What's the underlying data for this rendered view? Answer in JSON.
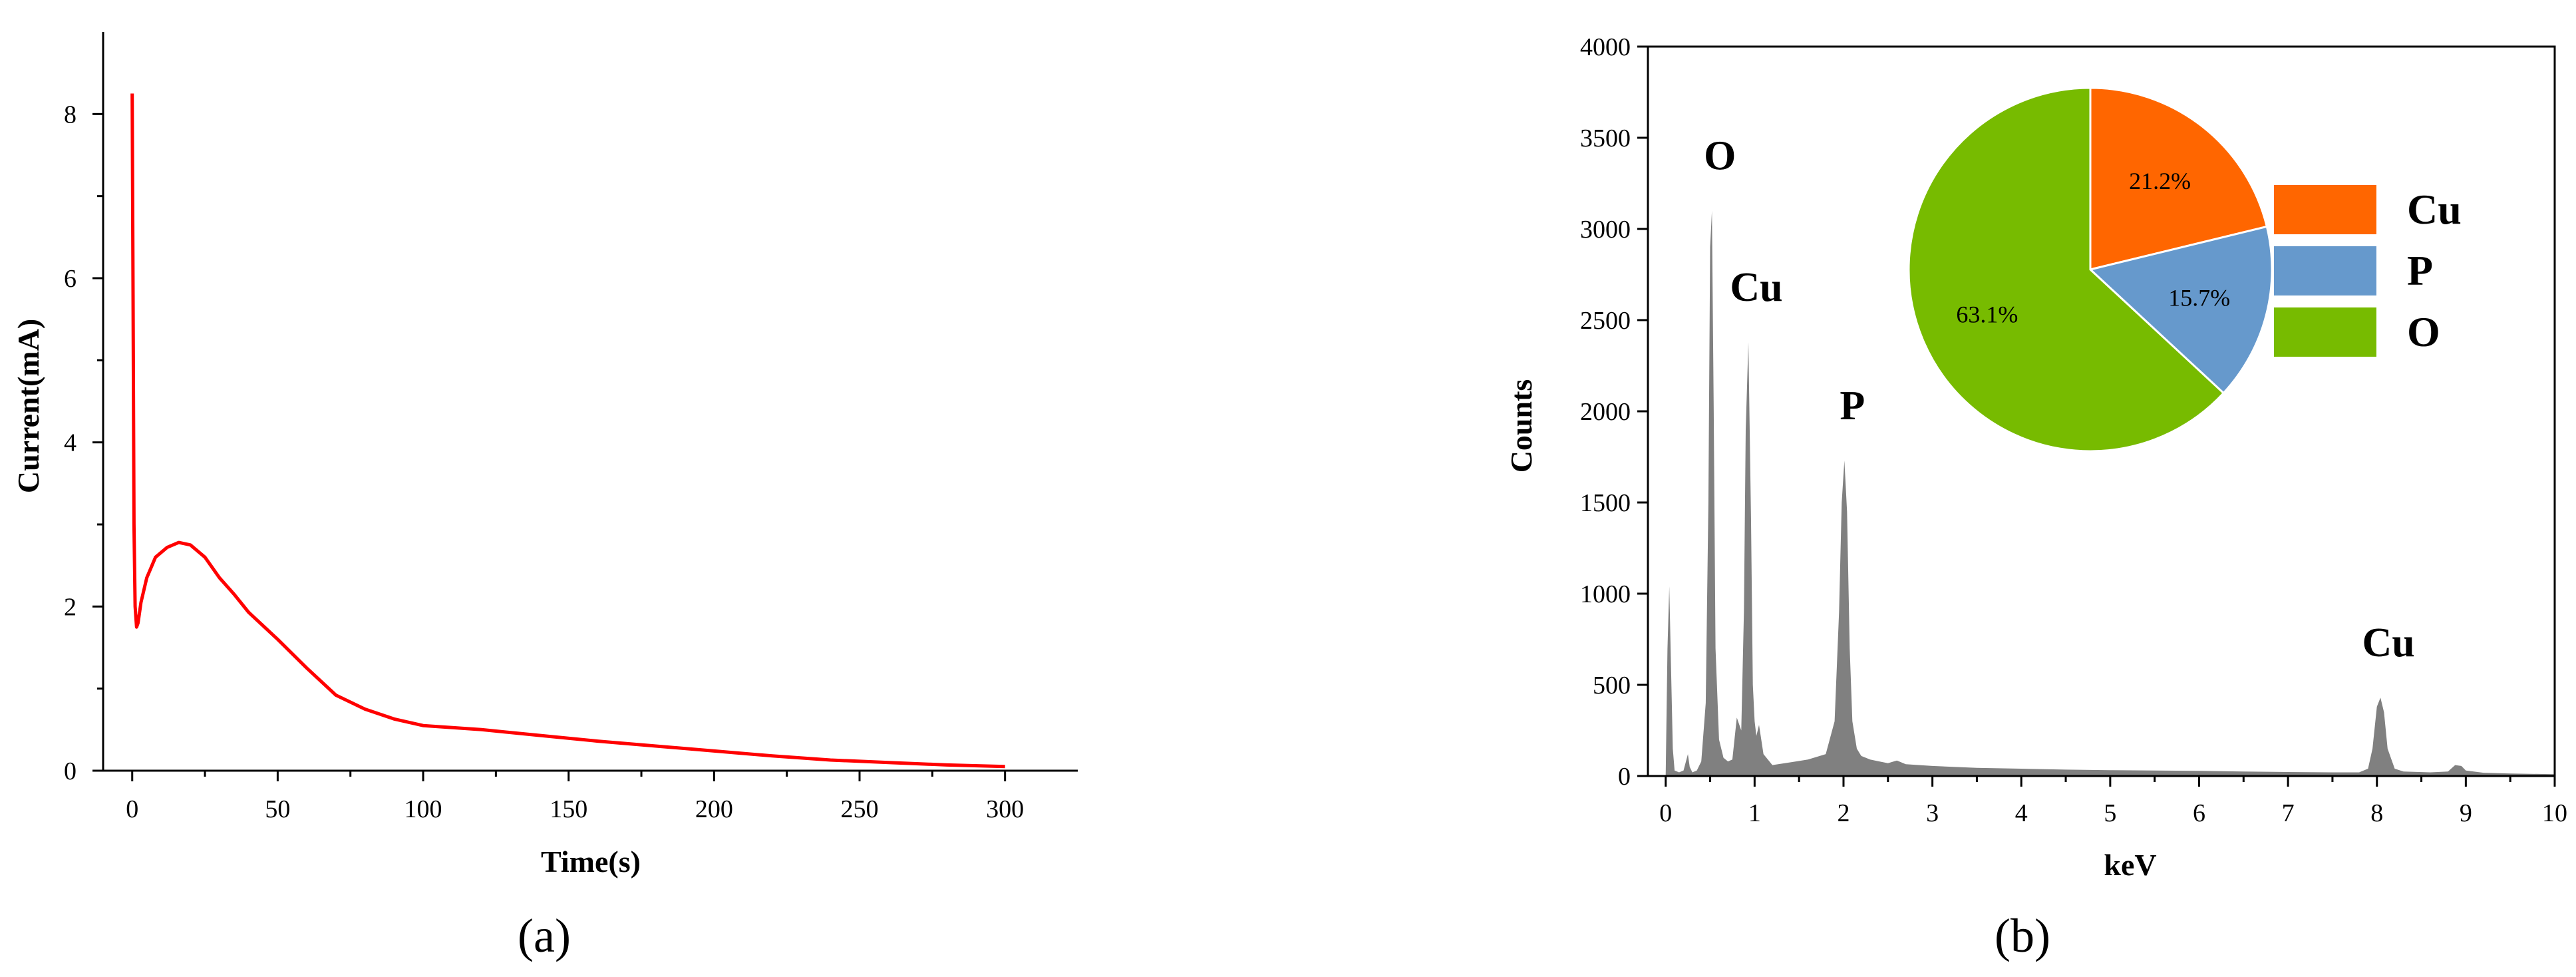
{
  "chart_data": [
    {
      "panel": "(a)",
      "type": "line",
      "xlabel": "Time(s)",
      "ylabel": "Current(mA)",
      "xlim": [
        -10,
        325
      ],
      "ylim": [
        0,
        9
      ],
      "xticks": [
        0,
        50,
        100,
        150,
        200,
        250,
        300
      ],
      "yticks": [
        0,
        2,
        4,
        6,
        8
      ],
      "grid": false,
      "colors": {
        "line": "#ff0000"
      },
      "series": [
        {
          "color": "#ff0000",
          "x": [
            0,
            0.3,
            0.6,
            1,
            1.5,
            2,
            3,
            5,
            8,
            12,
            16,
            20,
            25,
            30,
            35,
            40,
            50,
            60,
            70,
            80,
            90,
            100,
            120,
            140,
            160,
            180,
            200,
            220,
            240,
            260,
            280,
            300
          ],
          "y": [
            8.25,
            5.8,
            3.0,
            2.0,
            1.75,
            1.8,
            2.05,
            2.35,
            2.6,
            2.72,
            2.78,
            2.75,
            2.6,
            2.35,
            2.15,
            1.93,
            1.6,
            1.25,
            0.92,
            0.75,
            0.63,
            0.55,
            0.5,
            0.43,
            0.36,
            0.3,
            0.24,
            0.18,
            0.13,
            0.1,
            0.07,
            0.05
          ]
        }
      ]
    },
    {
      "panel": "(b)",
      "type": "area",
      "xlabel": "keV",
      "ylabel": "Counts",
      "xlim": [
        -0.2,
        10
      ],
      "ylim": [
        0,
        4000
      ],
      "xticks": [
        0,
        1,
        2,
        3,
        4,
        5,
        6,
        7,
        8,
        9,
        10
      ],
      "yticks": [
        0,
        500,
        1000,
        1500,
        2000,
        2500,
        3000,
        3500,
        4000
      ],
      "grid": false,
      "colors": {
        "spectrum": "#808080"
      },
      "peaks": [
        {
          "label": "O",
          "x": 0.52,
          "y": 3100
        },
        {
          "label": "Cu",
          "x": 0.93,
          "y": 2380
        },
        {
          "label": "P",
          "x": 2.01,
          "y": 1730
        },
        {
          "label": "Cu",
          "x": 8.04,
          "y": 430
        }
      ],
      "spectrum_x": [
        0,
        0.02,
        0.04,
        0.06,
        0.08,
        0.1,
        0.15,
        0.2,
        0.25,
        0.27,
        0.3,
        0.35,
        0.4,
        0.45,
        0.48,
        0.5,
        0.52,
        0.54,
        0.56,
        0.6,
        0.65,
        0.7,
        0.75,
        0.8,
        0.85,
        0.88,
        0.9,
        0.93,
        0.96,
        0.98,
        1.0,
        1.02,
        1.05,
        1.1,
        1.2,
        1.4,
        1.6,
        1.8,
        1.9,
        1.95,
        1.98,
        2.01,
        2.04,
        2.07,
        2.1,
        2.15,
        2.2,
        2.3,
        2.5,
        2.6,
        2.7,
        3.0,
        3.5,
        4.0,
        4.5,
        5.0,
        5.5,
        6.0,
        6.5,
        7.0,
        7.5,
        7.8,
        7.9,
        7.95,
        8.0,
        8.04,
        8.08,
        8.12,
        8.2,
        8.3,
        8.6,
        8.8,
        8.88,
        8.95,
        9.0,
        9.2,
        9.5,
        10.0
      ],
      "spectrum_y": [
        0,
        700,
        1040,
        600,
        150,
        30,
        20,
        30,
        120,
        50,
        20,
        30,
        80,
        400,
        1500,
        2900,
        3100,
        2000,
        700,
        200,
        100,
        80,
        90,
        320,
        250,
        900,
        1900,
        2380,
        1400,
        500,
        300,
        220,
        280,
        120,
        60,
        75,
        90,
        120,
        300,
        900,
        1500,
        1730,
        1450,
        700,
        300,
        150,
        110,
        90,
        70,
        85,
        65,
        55,
        45,
        40,
        35,
        32,
        30,
        28,
        25,
        22,
        20,
        20,
        40,
        150,
        380,
        430,
        350,
        150,
        40,
        25,
        20,
        25,
        60,
        55,
        30,
        18,
        14,
        10
      ],
      "inset_pie": {
        "slices": [
          {
            "label": "Cu",
            "value": 21.2,
            "text": "21.2%",
            "color": "#ff6600"
          },
          {
            "label": "P",
            "value": 15.7,
            "text": "15.7%",
            "color": "#6699cc"
          },
          {
            "label": "O",
            "value": 63.1,
            "text": "63.1%",
            "color": "#77bb00"
          }
        ],
        "legend": [
          "Cu",
          "P",
          "O"
        ],
        "legend_placement": "right of pie"
      }
    }
  ],
  "panel_labels": {
    "a": "(a)",
    "b": "(b)"
  }
}
